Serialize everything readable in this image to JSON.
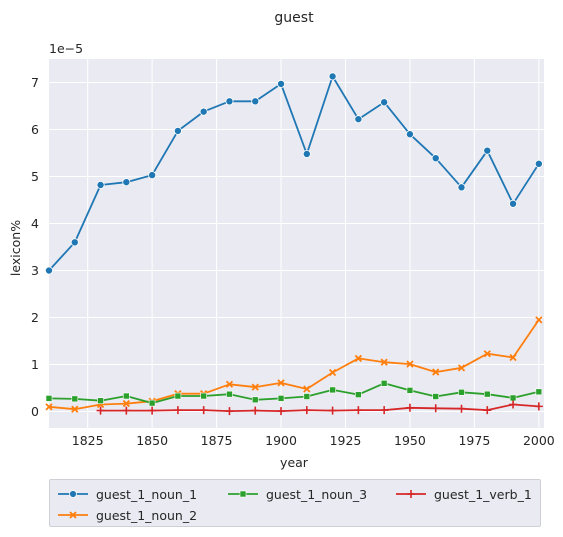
{
  "chart_data": {
    "type": "line",
    "title": "guest",
    "xlabel": "year",
    "ylabel": "lexicon%",
    "y_multiplier": "1e−5",
    "xlim": [
      1810,
      2002
    ],
    "ylim": [
      -0.35,
      7.5
    ],
    "x_ticks": [
      1825,
      1850,
      1875,
      1900,
      1925,
      1950,
      1975,
      2000
    ],
    "y_ticks": [
      0,
      1,
      2,
      3,
      4,
      5,
      6,
      7
    ],
    "grid": true,
    "legend_position": "bottom",
    "series": [
      {
        "name": "guest_1_noun_1",
        "color": "#1f77b4",
        "marker": "circle",
        "x": [
          1810,
          1820,
          1830,
          1840,
          1850,
          1860,
          1870,
          1880,
          1890,
          1900,
          1910,
          1920,
          1930,
          1940,
          1950,
          1960,
          1970,
          1980,
          1990,
          2000
        ],
        "values": [
          3.0,
          3.6,
          4.82,
          4.88,
          5.03,
          5.97,
          6.38,
          6.6,
          6.6,
          6.97,
          5.48,
          7.13,
          6.22,
          6.58,
          5.9,
          5.39,
          4.77,
          5.55,
          4.42,
          5.27
        ]
      },
      {
        "name": "guest_1_noun_2",
        "color": "#ff7f0e",
        "marker": "x",
        "x": [
          1810,
          1820,
          1830,
          1840,
          1850,
          1860,
          1870,
          1880,
          1890,
          1900,
          1910,
          1920,
          1930,
          1940,
          1950,
          1960,
          1970,
          1980,
          1990,
          2000
        ],
        "values": [
          0.1,
          0.05,
          0.15,
          0.17,
          0.22,
          0.38,
          0.38,
          0.58,
          0.52,
          0.61,
          0.48,
          0.83,
          1.13,
          1.05,
          1.01,
          0.84,
          0.93,
          1.23,
          1.15,
          1.95
        ]
      },
      {
        "name": "guest_1_noun_3",
        "color": "#2ca02c",
        "marker": "square",
        "x": [
          1810,
          1820,
          1830,
          1840,
          1850,
          1860,
          1870,
          1880,
          1890,
          1900,
          1910,
          1920,
          1930,
          1940,
          1950,
          1960,
          1970,
          1980,
          1990,
          2000
        ],
        "values": [
          0.28,
          0.27,
          0.23,
          0.33,
          0.18,
          0.33,
          0.33,
          0.37,
          0.25,
          0.28,
          0.32,
          0.46,
          0.36,
          0.6,
          0.45,
          0.32,
          0.41,
          0.37,
          0.29,
          0.42
        ]
      },
      {
        "name": "guest_1_verb_1",
        "color": "#d62728",
        "marker": "plus",
        "x": [
          1830,
          1840,
          1850,
          1860,
          1870,
          1880,
          1890,
          1900,
          1910,
          1920,
          1930,
          1940,
          1950,
          1960,
          1970,
          1980,
          1990,
          2000
        ],
        "values": [
          0.02,
          0.02,
          0.02,
          0.03,
          0.03,
          0.01,
          0.02,
          0.01,
          0.03,
          0.02,
          0.03,
          0.03,
          0.08,
          0.07,
          0.06,
          0.03,
          0.15,
          0.11
        ]
      }
    ]
  }
}
